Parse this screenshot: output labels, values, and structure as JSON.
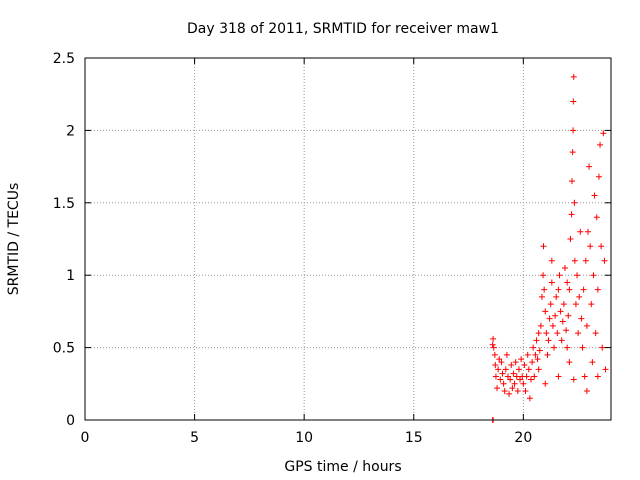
{
  "chart_data": {
    "type": "scatter",
    "title": "Day 318 of 2011, SRMTID for receiver maw1",
    "xlabel": "GPS time / hours",
    "ylabel": "SRMTID / TECUs",
    "xlim": [
      0,
      24
    ],
    "ylim": [
      0,
      2.5
    ],
    "x_ticks": [
      0,
      5,
      10,
      15,
      20
    ],
    "y_ticks": [
      0,
      0.5,
      1,
      1.5,
      2,
      2.5
    ],
    "x_tick_labels": [
      "0",
      "5",
      "10",
      "15",
      "20"
    ],
    "y_tick_labels": [
      "0",
      "0.5",
      "1",
      "1.5",
      "2",
      "2.5"
    ],
    "grid": true,
    "marker": "+",
    "color": "#ff0000",
    "series": [
      {
        "name": "",
        "points": [
          [
            18.6,
            0.0
          ],
          [
            18.62,
            0.0
          ],
          [
            18.6,
            0.52
          ],
          [
            18.62,
            0.56
          ],
          [
            18.65,
            0.5
          ],
          [
            18.7,
            0.45
          ],
          [
            18.72,
            0.38
          ],
          [
            18.75,
            0.3
          ],
          [
            18.8,
            0.22
          ],
          [
            18.85,
            0.35
          ],
          [
            18.9,
            0.42
          ],
          [
            18.95,
            0.28
          ],
          [
            19.0,
            0.4
          ],
          [
            19.05,
            0.32
          ],
          [
            19.1,
            0.25
          ],
          [
            19.15,
            0.2
          ],
          [
            19.2,
            0.35
          ],
          [
            19.25,
            0.45
          ],
          [
            19.3,
            0.3
          ],
          [
            19.35,
            0.18
          ],
          [
            19.4,
            0.28
          ],
          [
            19.45,
            0.38
          ],
          [
            19.5,
            0.22
          ],
          [
            19.55,
            0.32
          ],
          [
            19.6,
            0.25
          ],
          [
            19.65,
            0.4
          ],
          [
            19.7,
            0.3
          ],
          [
            19.75,
            0.2
          ],
          [
            19.8,
            0.35
          ],
          [
            19.85,
            0.28
          ],
          [
            19.9,
            0.42
          ],
          [
            19.95,
            0.3
          ],
          [
            20.0,
            0.25
          ],
          [
            20.05,
            0.38
          ],
          [
            20.1,
            0.2
          ],
          [
            20.15,
            0.3
          ],
          [
            20.2,
            0.45
          ],
          [
            20.25,
            0.35
          ],
          [
            20.3,
            0.15
          ],
          [
            20.35,
            0.28
          ],
          [
            20.4,
            0.4
          ],
          [
            20.45,
            0.5
          ],
          [
            20.5,
            0.3
          ],
          [
            20.55,
            0.45
          ],
          [
            20.6,
            0.55
          ],
          [
            20.65,
            0.42
          ],
          [
            20.7,
            0.6
          ],
          [
            20.75,
            0.48
          ],
          [
            20.8,
            0.65
          ],
          [
            20.85,
            0.85
          ],
          [
            20.9,
            1.0
          ],
          [
            20.92,
            1.2
          ],
          [
            20.95,
            0.9
          ],
          [
            21.0,
            0.75
          ],
          [
            21.05,
            0.6
          ],
          [
            21.1,
            0.45
          ],
          [
            21.15,
            0.55
          ],
          [
            21.2,
            0.7
          ],
          [
            21.25,
            0.8
          ],
          [
            21.3,
            0.95
          ],
          [
            21.35,
            0.65
          ],
          [
            21.4,
            0.5
          ],
          [
            21.45,
            0.72
          ],
          [
            21.5,
            0.85
          ],
          [
            21.55,
            0.6
          ],
          [
            21.6,
            0.9
          ],
          [
            21.65,
            1.0
          ],
          [
            21.7,
            0.75
          ],
          [
            21.75,
            0.55
          ],
          [
            21.8,
            0.68
          ],
          [
            21.85,
            0.8
          ],
          [
            21.9,
            1.05
          ],
          [
            21.95,
            0.62
          ],
          [
            22.0,
            0.5
          ],
          [
            22.05,
            0.72
          ],
          [
            22.1,
            0.9
          ],
          [
            22.15,
            1.25
          ],
          [
            22.2,
            1.42
          ],
          [
            22.22,
            1.65
          ],
          [
            22.25,
            1.85
          ],
          [
            22.27,
            2.0
          ],
          [
            22.28,
            2.2
          ],
          [
            22.3,
            2.37
          ],
          [
            22.33,
            1.5
          ],
          [
            22.35,
            1.1
          ],
          [
            22.4,
            0.8
          ],
          [
            22.45,
            1.0
          ],
          [
            22.5,
            0.6
          ],
          [
            22.55,
            0.85
          ],
          [
            22.6,
            1.3
          ],
          [
            22.65,
            0.7
          ],
          [
            22.7,
            0.5
          ],
          [
            22.75,
            0.9
          ],
          [
            22.8,
            0.3
          ],
          [
            22.85,
            1.1
          ],
          [
            22.9,
            0.65
          ],
          [
            22.95,
            1.3
          ],
          [
            23.0,
            1.75
          ],
          [
            23.05,
            1.2
          ],
          [
            23.1,
            0.8
          ],
          [
            23.15,
            0.4
          ],
          [
            23.2,
            1.0
          ],
          [
            23.25,
            1.55
          ],
          [
            23.3,
            0.6
          ],
          [
            23.35,
            1.4
          ],
          [
            23.4,
            0.9
          ],
          [
            23.45,
            1.68
          ],
          [
            23.5,
            1.9
          ],
          [
            23.55,
            1.2
          ],
          [
            23.6,
            0.5
          ],
          [
            23.65,
            1.98
          ],
          [
            23.7,
            1.1
          ],
          [
            23.75,
            0.35
          ],
          [
            22.1,
            0.4
          ],
          [
            22.3,
            0.28
          ],
          [
            21.6,
            0.3
          ],
          [
            21.0,
            0.25
          ],
          [
            20.7,
            0.35
          ],
          [
            22.9,
            0.2
          ],
          [
            23.4,
            0.3
          ],
          [
            22.0,
            0.95
          ],
          [
            21.3,
            1.1
          ]
        ]
      }
    ]
  }
}
